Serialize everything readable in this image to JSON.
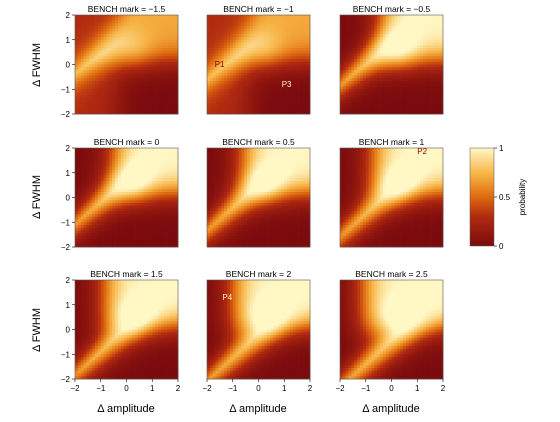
{
  "chart_data": {
    "type": "heatmap",
    "xlabel": "Δ amplitude",
    "ylabel": "Δ FWHM",
    "xlim": [
      -2,
      2
    ],
    "ylim": [
      -2,
      2
    ],
    "x_ticks": [
      "−2",
      "−1",
      "0",
      "1",
      "2"
    ],
    "y_ticks": [
      "−2",
      "−1",
      "0",
      "1",
      "2"
    ],
    "colorbar": {
      "title": "probability",
      "ticks": [
        "0",
        "0.5",
        "1"
      ],
      "range": [
        0,
        1
      ],
      "colors": [
        "#7a0a0e",
        "#c2410c",
        "#f59e2a",
        "#fff7c4"
      ]
    },
    "panels": [
      {
        "title": "BENCH mark = −1.5",
        "mark": -1.5,
        "annotations": []
      },
      {
        "title": "BENCH mark = −1",
        "mark": -1,
        "annotations": [
          {
            "label": "P1",
            "x": -1.7,
            "y": -0.1,
            "color": "#8b0000"
          },
          {
            "label": "P3",
            "x": 0.9,
            "y": -0.9,
            "color": "#fff3c8"
          }
        ]
      },
      {
        "title": "BENCH mark = −0.5",
        "mark": -0.5,
        "annotations": []
      },
      {
        "title": "BENCH mark = 0",
        "mark": 0,
        "annotations": []
      },
      {
        "title": "BENCH mark = 0.5",
        "mark": 0.5,
        "annotations": []
      },
      {
        "title": "BENCH mark = 1",
        "mark": 1,
        "annotations": [
          {
            "label": "P2",
            "x": 1.0,
            "y": 1.75,
            "color": "#8b0000"
          }
        ]
      },
      {
        "title": "BENCH mark = 1.5",
        "mark": 1.5,
        "annotations": []
      },
      {
        "title": "BENCH mark = 2",
        "mark": 2,
        "annotations": [
          {
            "label": "P4",
            "x": -1.4,
            "y": 1.2,
            "color": "#fff3c8"
          }
        ]
      },
      {
        "title": "BENCH mark = 2.5",
        "mark": 2.5,
        "annotations": []
      }
    ]
  }
}
